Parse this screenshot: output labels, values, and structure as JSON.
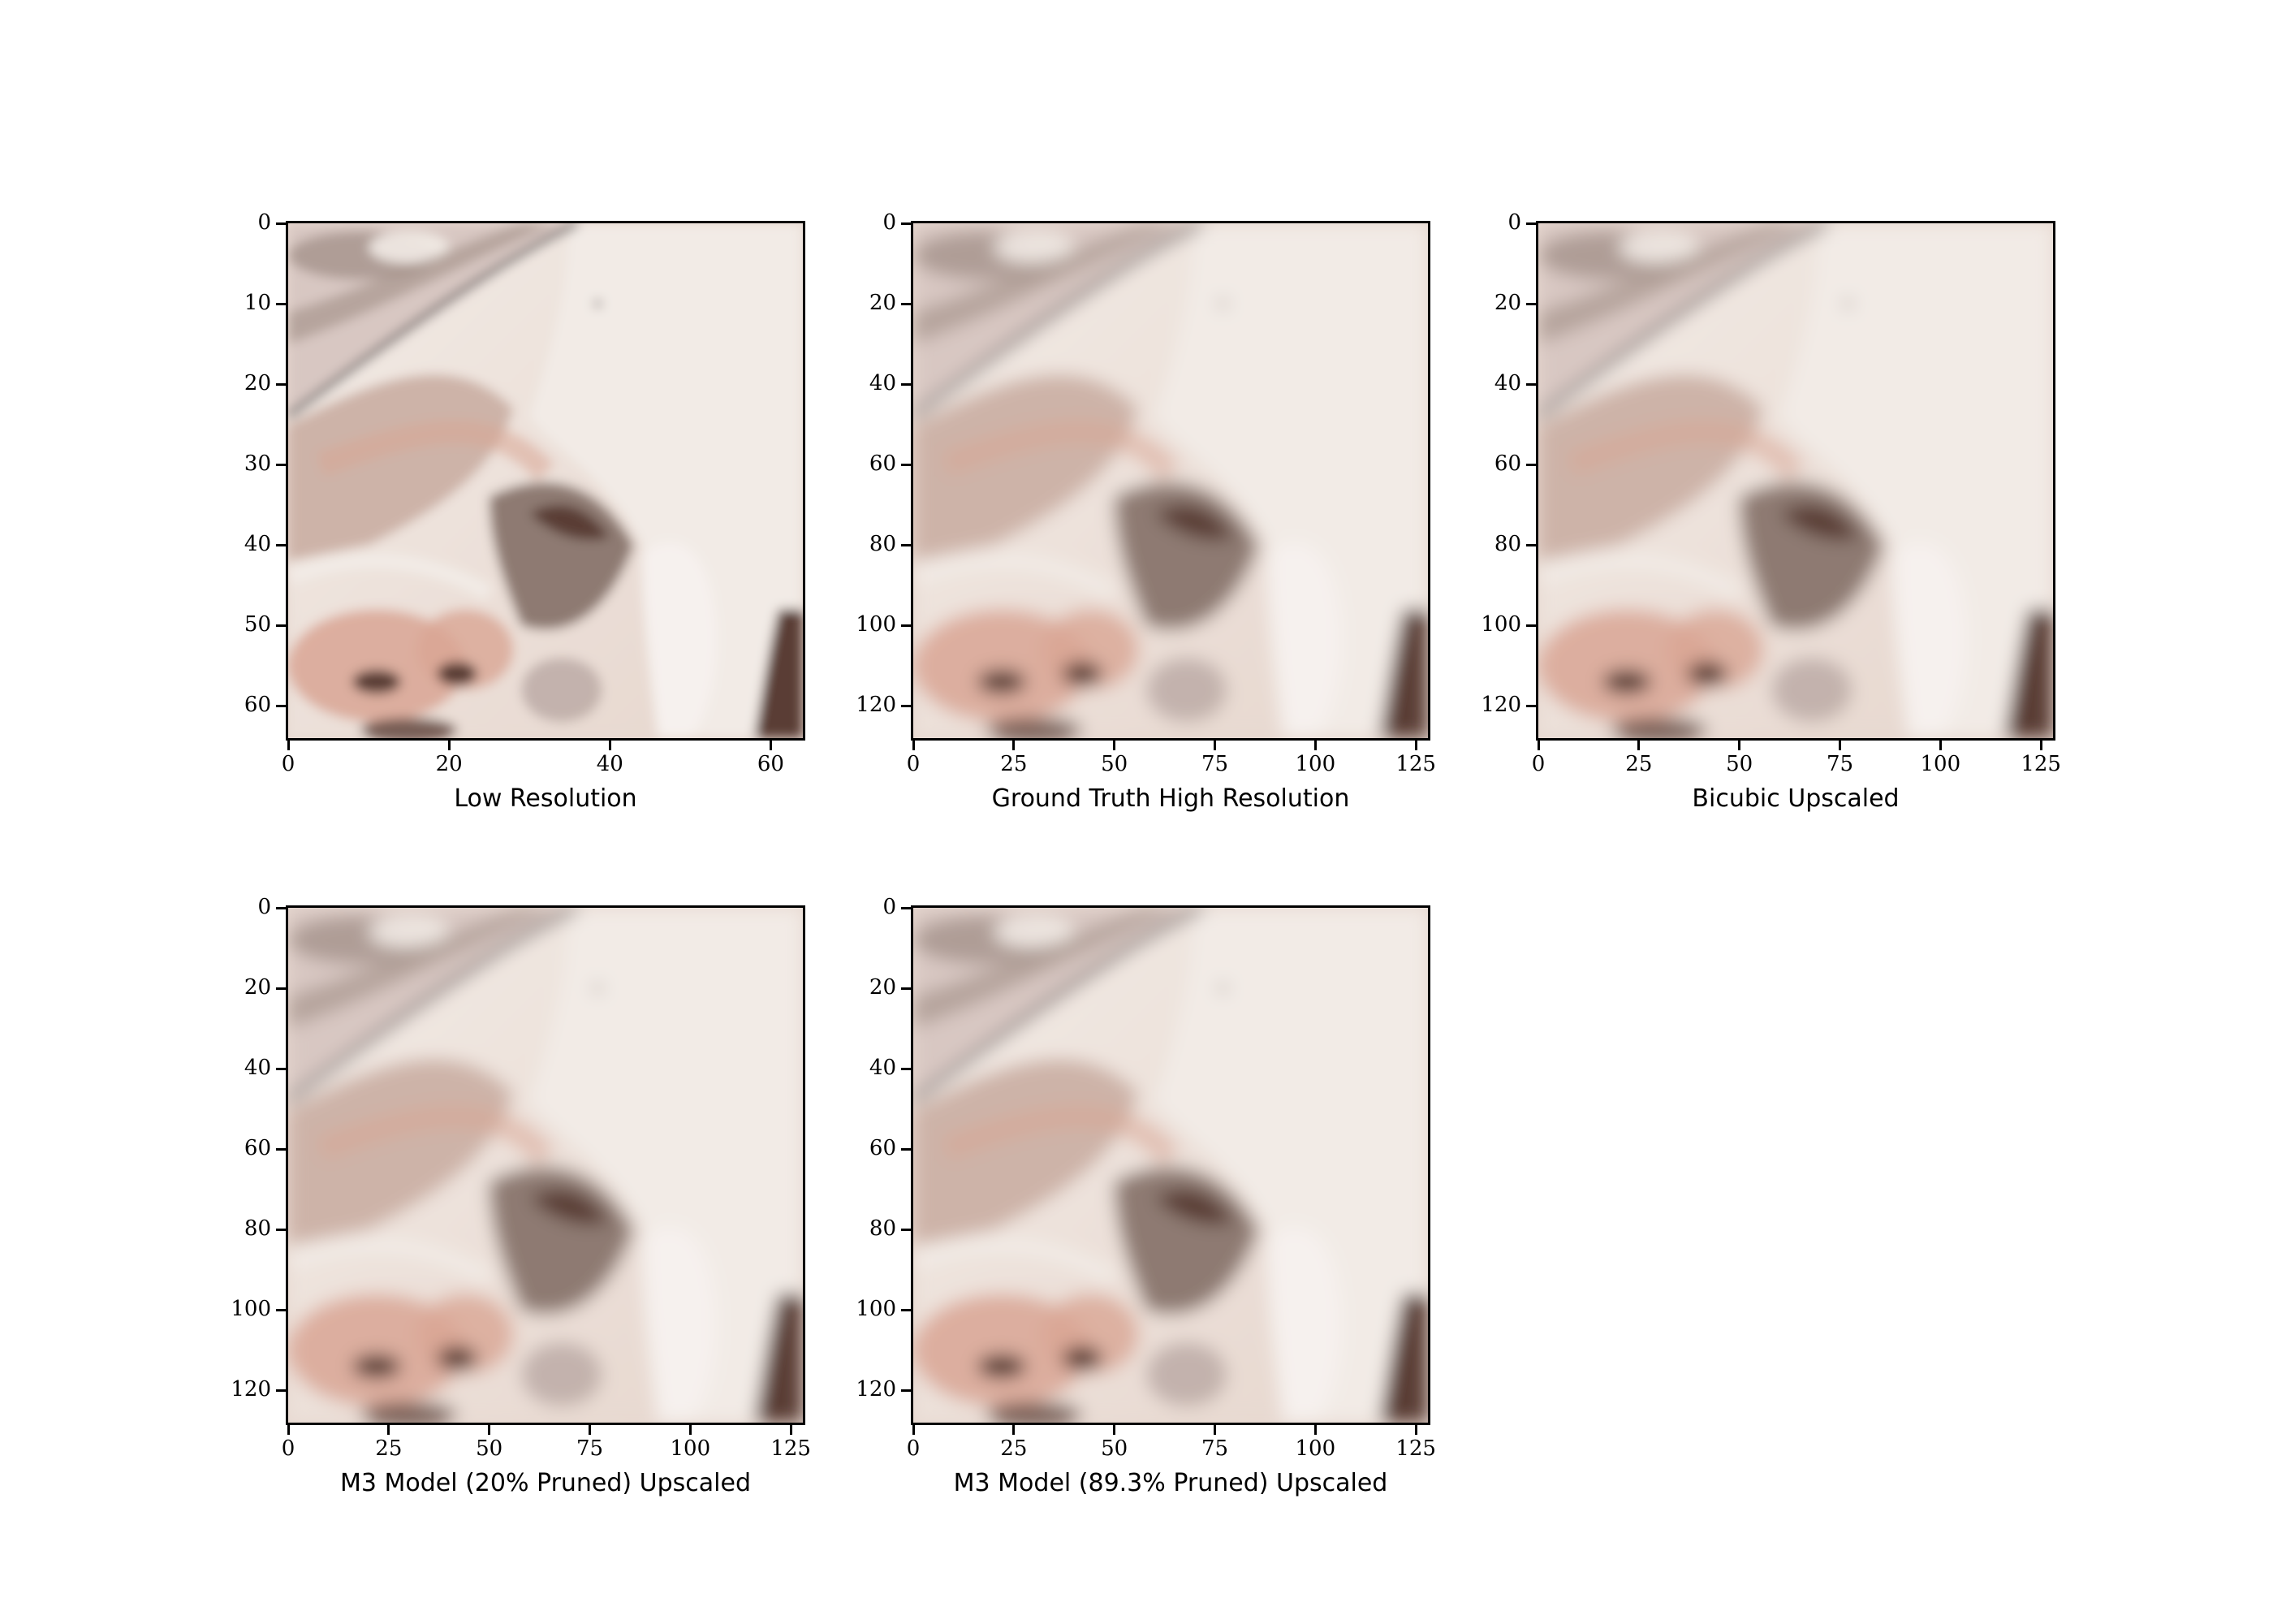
{
  "panels": [
    {
      "xlabel": "Low Resolution",
      "xticks": [
        "0",
        "20",
        "40",
        "60"
      ],
      "yticks": [
        "0",
        "10",
        "20",
        "30",
        "40",
        "50",
        "60"
      ],
      "xlim": [
        0,
        64
      ],
      "ylim": [
        0,
        64
      ],
      "pixelated": true
    },
    {
      "xlabel": "Ground Truth High Resolution",
      "xticks": [
        "0",
        "25",
        "50",
        "75",
        "100",
        "125"
      ],
      "yticks": [
        "0",
        "20",
        "40",
        "60",
        "80",
        "100",
        "120"
      ],
      "xlim": [
        0,
        128
      ],
      "ylim": [
        0,
        128
      ],
      "pixelated": false
    },
    {
      "xlabel": "Bicubic Upscaled",
      "xticks": [
        "0",
        "25",
        "50",
        "75",
        "100",
        "125"
      ],
      "yticks": [
        "0",
        "20",
        "40",
        "60",
        "80",
        "100",
        "120"
      ],
      "xlim": [
        0,
        128
      ],
      "ylim": [
        0,
        128
      ],
      "pixelated": false
    },
    {
      "xlabel": "M3 Model (20% Pruned) Upscaled",
      "xticks": [
        "0",
        "25",
        "50",
        "75",
        "100",
        "125"
      ],
      "yticks": [
        "0",
        "20",
        "40",
        "60",
        "80",
        "100",
        "120"
      ],
      "xlim": [
        0,
        128
      ],
      "ylim": [
        0,
        128
      ],
      "pixelated": false
    },
    {
      "xlabel": "M3 Model (89.3% Pruned) Upscaled",
      "xticks": [
        "0",
        "25",
        "50",
        "75",
        "100",
        "125"
      ],
      "yticks": [
        "0",
        "20",
        "40",
        "60",
        "80",
        "100",
        "120"
      ],
      "xlim": [
        0,
        128
      ],
      "ylim": [
        0,
        128
      ],
      "pixelated": false
    }
  ],
  "image_colors": {
    "base": "#e6d6cd",
    "highlight": "#f2ebe6",
    "shadow": "#8e7a72",
    "dark": "#5a3c34",
    "flesh": "#d9a594",
    "edge": "#6f6a6a"
  }
}
